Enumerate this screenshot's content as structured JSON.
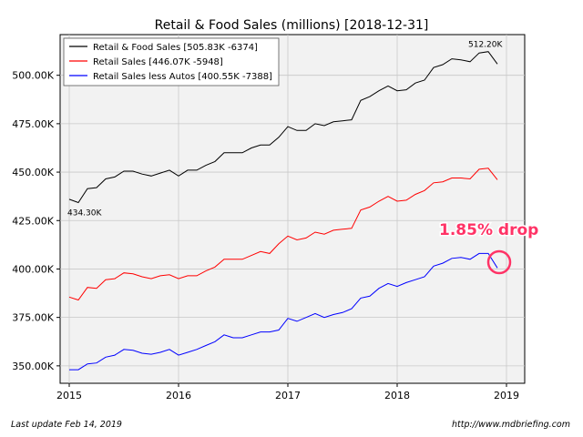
{
  "chart_data": {
    "type": "line",
    "title": "Retail & Food Sales (millions) [2018-12-31]",
    "xlabel": "",
    "ylabel": "",
    "x_ticks": [
      "2015",
      "2016",
      "2017",
      "2018",
      "2019"
    ],
    "y_ticks": [
      "350.00K",
      "375.00K",
      "400.00K",
      "425.00K",
      "450.00K",
      "475.00K",
      "500.00K"
    ],
    "ylim": [
      341,
      521
    ],
    "xlim": [
      "2014-12",
      "2019-03"
    ],
    "grid": true,
    "legend_position": "top-left",
    "x": [
      "2015-01",
      "2015-02",
      "2015-03",
      "2015-04",
      "2015-05",
      "2015-06",
      "2015-07",
      "2015-08",
      "2015-09",
      "2015-10",
      "2015-11",
      "2015-12",
      "2016-01",
      "2016-02",
      "2016-03",
      "2016-04",
      "2016-05",
      "2016-06",
      "2016-07",
      "2016-08",
      "2016-09",
      "2016-10",
      "2016-11",
      "2016-12",
      "2017-01",
      "2017-02",
      "2017-03",
      "2017-04",
      "2017-05",
      "2017-06",
      "2017-07",
      "2017-08",
      "2017-09",
      "2017-10",
      "2017-11",
      "2017-12",
      "2018-01",
      "2018-02",
      "2018-03",
      "2018-04",
      "2018-05",
      "2018-06",
      "2018-07",
      "2018-08",
      "2018-09",
      "2018-10",
      "2018-11",
      "2018-12"
    ],
    "series": [
      {
        "name": "Retail & Food Sales [505.83K -6374]",
        "color": "#000000",
        "values": [
          436.0,
          434.3,
          441.5,
          442.0,
          446.5,
          447.5,
          450.5,
          450.5,
          449.0,
          448.0,
          449.5,
          451.0,
          448.0,
          451.0,
          451.0,
          453.5,
          455.5,
          460.0,
          460.0,
          460.0,
          462.5,
          464.0,
          464.0,
          468.0,
          473.5,
          471.5,
          471.5,
          475.0,
          474.0,
          476.0,
          476.5,
          477.0,
          487.0,
          489.0,
          492.0,
          494.5,
          492.0,
          492.5,
          496.0,
          497.5,
          504.0,
          505.5,
          508.5,
          508.0,
          507.0,
          511.5,
          512.2,
          505.83
        ]
      },
      {
        "name": "Retail Sales [446.07K -5948]",
        "color": "#ff0000",
        "values": [
          385.5,
          384.0,
          390.5,
          390.0,
          394.5,
          395.0,
          398.0,
          397.5,
          396.0,
          395.0,
          396.5,
          397.0,
          395.0,
          396.5,
          396.5,
          399.0,
          401.0,
          405.0,
          405.0,
          405.0,
          407.0,
          409.0,
          408.0,
          413.0,
          417.0,
          415.0,
          416.0,
          419.0,
          418.0,
          420.0,
          420.5,
          421.0,
          430.5,
          432.0,
          435.0,
          437.5,
          435.0,
          435.5,
          438.5,
          440.5,
          444.5,
          445.0,
          447.0,
          447.0,
          446.5,
          451.5,
          452.0,
          446.07
        ]
      },
      {
        "name": "Retail Sales less Autos [400.55K -7388]",
        "color": "#0000ff",
        "values": [
          348.0,
          348.0,
          351.0,
          351.5,
          354.5,
          355.5,
          358.5,
          358.0,
          356.5,
          356.0,
          357.0,
          358.5,
          355.5,
          357.0,
          358.5,
          360.5,
          362.5,
          366.0,
          364.5,
          364.5,
          366.0,
          367.5,
          367.5,
          368.5,
          374.5,
          373.0,
          375.0,
          377.0,
          375.0,
          376.5,
          377.5,
          379.5,
          385.0,
          386.0,
          390.0,
          392.5,
          391.0,
          393.0,
          394.5,
          396.0,
          401.5,
          403.0,
          405.5,
          406.0,
          405.0,
          408.0,
          408.0,
          400.55
        ]
      }
    ],
    "annotations": [
      {
        "text": "434.30K",
        "series": 0,
        "index": 1
      },
      {
        "text": "512.20K",
        "series": 0,
        "index": 46
      },
      {
        "text": "1.85% drop",
        "color": "#ff3366"
      }
    ]
  },
  "footer": {
    "left": "Last update Feb 14, 2019",
    "right": "http://www.mdbriefing.com"
  }
}
